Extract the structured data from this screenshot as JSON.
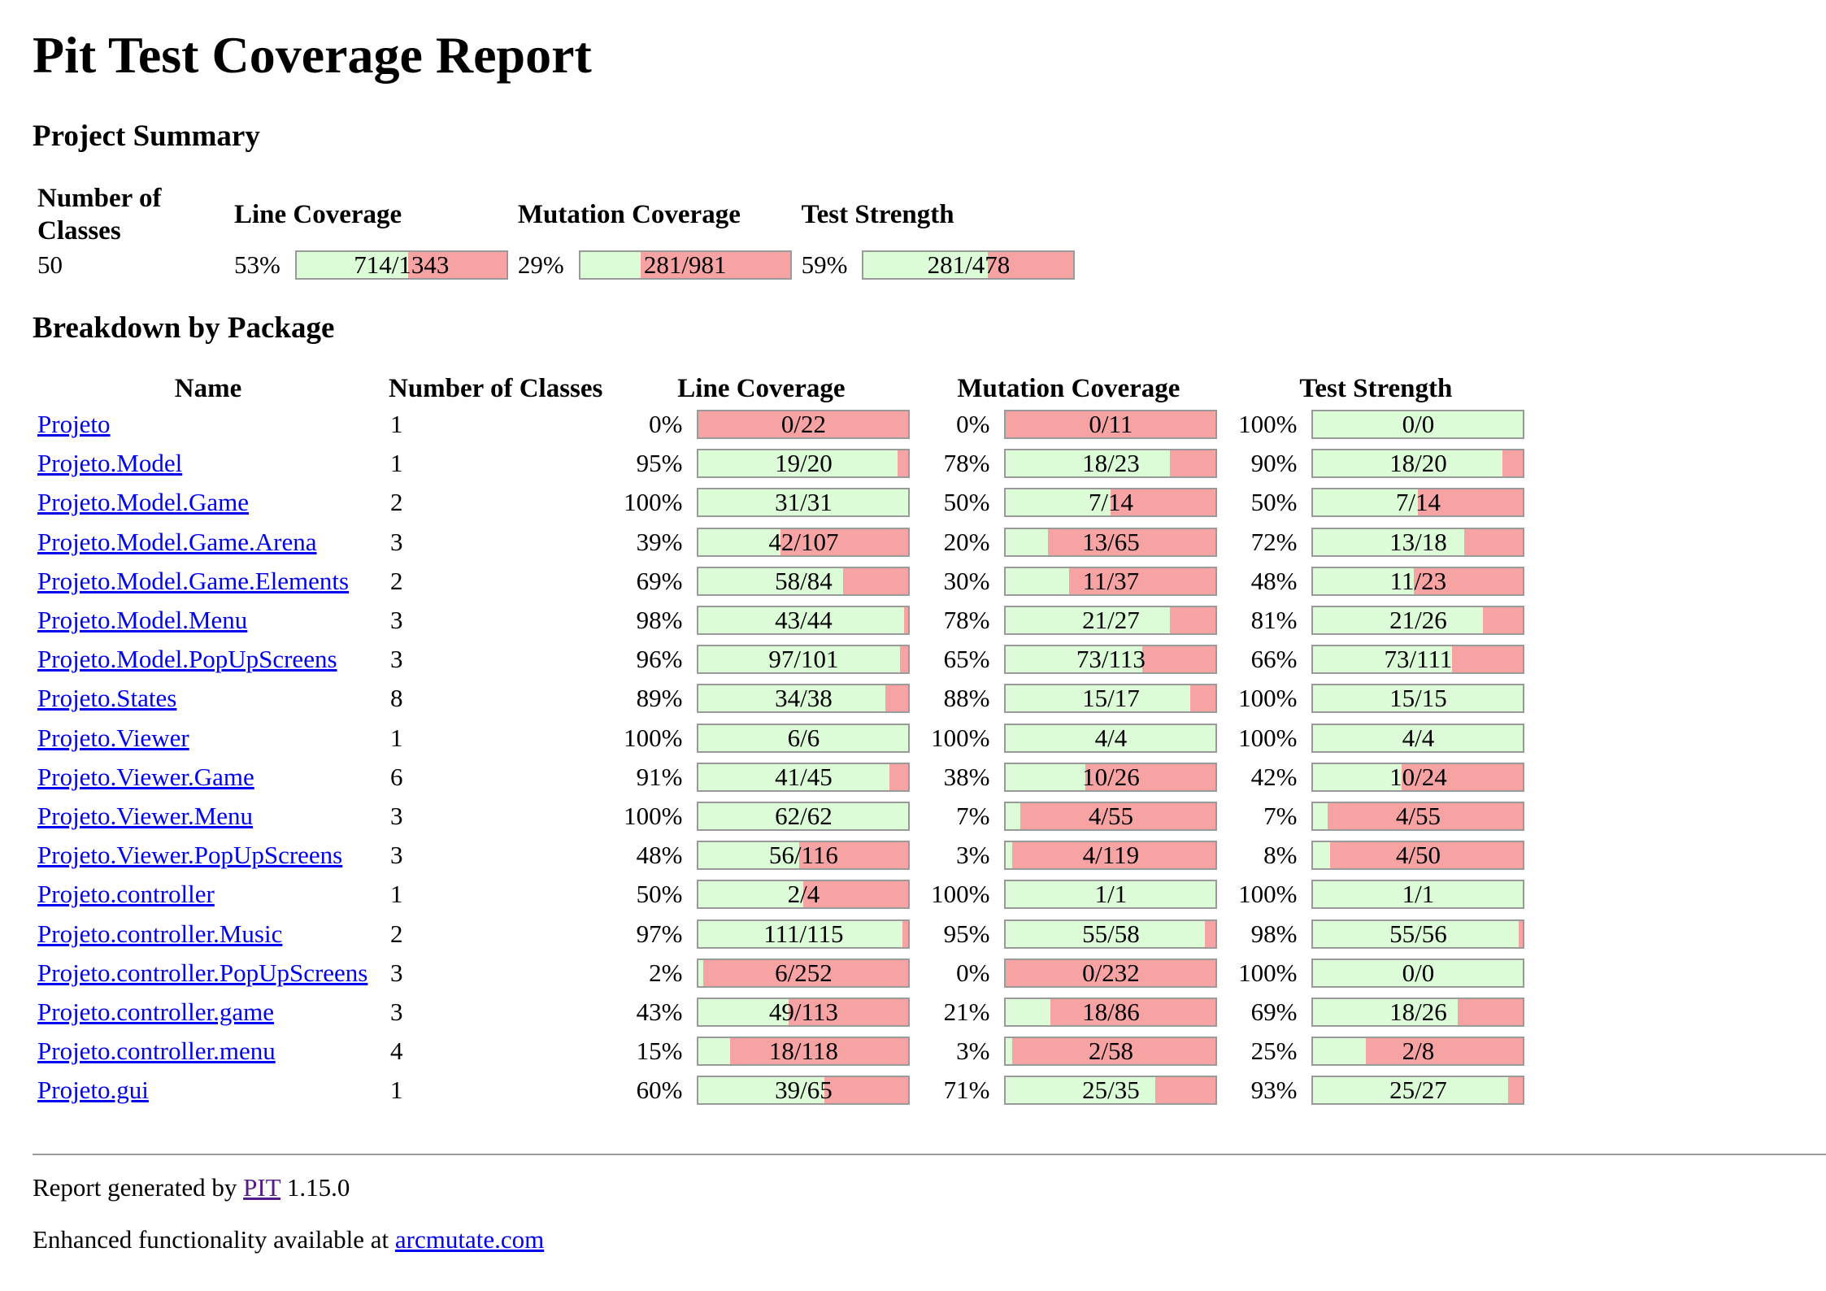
{
  "title": "Pit Test Coverage Report",
  "summary": {
    "heading": "Project Summary",
    "headers": {
      "classes": "Number of Classes",
      "line": "Line Coverage",
      "mutation": "Mutation Coverage",
      "strength": "Test Strength"
    },
    "classes": "50",
    "line": {
      "pct": "53%",
      "text": "714/1343",
      "ratio": 0.53
    },
    "mutation": {
      "pct": "29%",
      "text": "281/981",
      "ratio": 0.29
    },
    "strength": {
      "pct": "59%",
      "text": "281/478",
      "ratio": 0.59
    }
  },
  "breakdown": {
    "heading": "Breakdown by Package",
    "headers": {
      "name": "Name",
      "classes": "Number of Classes",
      "line": "Line Coverage",
      "mutation": "Mutation Coverage",
      "strength": "Test Strength"
    },
    "rows": [
      {
        "name": "Projeto",
        "classes": "1",
        "line": [
          "0%",
          "0/22",
          0
        ],
        "mutation": [
          "0%",
          "0/11",
          0
        ],
        "strength": [
          "100%",
          "0/0",
          1
        ]
      },
      {
        "name": "Projeto.Model",
        "classes": "1",
        "line": [
          "95%",
          "19/20",
          0.95
        ],
        "mutation": [
          "78%",
          "18/23",
          0.78
        ],
        "strength": [
          "90%",
          "18/20",
          0.9
        ]
      },
      {
        "name": "Projeto.Model.Game",
        "classes": "2",
        "line": [
          "100%",
          "31/31",
          1
        ],
        "mutation": [
          "50%",
          "7/14",
          0.5
        ],
        "strength": [
          "50%",
          "7/14",
          0.5
        ]
      },
      {
        "name": "Projeto.Model.Game.Arena",
        "classes": "3",
        "line": [
          "39%",
          "42/107",
          0.39
        ],
        "mutation": [
          "20%",
          "13/65",
          0.2
        ],
        "strength": [
          "72%",
          "13/18",
          0.72
        ]
      },
      {
        "name": "Projeto.Model.Game.Elements",
        "classes": "2",
        "line": [
          "69%",
          "58/84",
          0.69
        ],
        "mutation": [
          "30%",
          "11/37",
          0.3
        ],
        "strength": [
          "48%",
          "11/23",
          0.48
        ]
      },
      {
        "name": "Projeto.Model.Menu",
        "classes": "3",
        "line": [
          "98%",
          "43/44",
          0.98
        ],
        "mutation": [
          "78%",
          "21/27",
          0.78
        ],
        "strength": [
          "81%",
          "21/26",
          0.81
        ]
      },
      {
        "name": "Projeto.Model.PopUpScreens",
        "classes": "3",
        "line": [
          "96%",
          "97/101",
          0.96
        ],
        "mutation": [
          "65%",
          "73/113",
          0.65
        ],
        "strength": [
          "66%",
          "73/111",
          0.66
        ]
      },
      {
        "name": "Projeto.States",
        "classes": "8",
        "line": [
          "89%",
          "34/38",
          0.89
        ],
        "mutation": [
          "88%",
          "15/17",
          0.88
        ],
        "strength": [
          "100%",
          "15/15",
          1
        ]
      },
      {
        "name": "Projeto.Viewer",
        "classes": "1",
        "line": [
          "100%",
          "6/6",
          1
        ],
        "mutation": [
          "100%",
          "4/4",
          1
        ],
        "strength": [
          "100%",
          "4/4",
          1
        ]
      },
      {
        "name": "Projeto.Viewer.Game",
        "classes": "6",
        "line": [
          "91%",
          "41/45",
          0.91
        ],
        "mutation": [
          "38%",
          "10/26",
          0.38
        ],
        "strength": [
          "42%",
          "10/24",
          0.42
        ]
      },
      {
        "name": "Projeto.Viewer.Menu",
        "classes": "3",
        "line": [
          "100%",
          "62/62",
          1
        ],
        "mutation": [
          "7%",
          "4/55",
          0.07
        ],
        "strength": [
          "7%",
          "4/55",
          0.07
        ]
      },
      {
        "name": "Projeto.Viewer.PopUpScreens",
        "classes": "3",
        "line": [
          "48%",
          "56/116",
          0.48
        ],
        "mutation": [
          "3%",
          "4/119",
          0.03
        ],
        "strength": [
          "8%",
          "4/50",
          0.08
        ]
      },
      {
        "name": "Projeto.controller",
        "classes": "1",
        "line": [
          "50%",
          "2/4",
          0.5
        ],
        "mutation": [
          "100%",
          "1/1",
          1
        ],
        "strength": [
          "100%",
          "1/1",
          1
        ]
      },
      {
        "name": "Projeto.controller.Music",
        "classes": "2",
        "line": [
          "97%",
          "111/115",
          0.97
        ],
        "mutation": [
          "95%",
          "55/58",
          0.95
        ],
        "strength": [
          "98%",
          "55/56",
          0.98
        ]
      },
      {
        "name": "Projeto.controller.PopUpScreens",
        "classes": "3",
        "line": [
          "2%",
          "6/252",
          0.02
        ],
        "mutation": [
          "0%",
          "0/232",
          0
        ],
        "strength": [
          "100%",
          "0/0",
          1
        ]
      },
      {
        "name": "Projeto.controller.game",
        "classes": "3",
        "line": [
          "43%",
          "49/113",
          0.43
        ],
        "mutation": [
          "21%",
          "18/86",
          0.21
        ],
        "strength": [
          "69%",
          "18/26",
          0.69
        ]
      },
      {
        "name": "Projeto.controller.menu",
        "classes": "4",
        "line": [
          "15%",
          "18/118",
          0.15
        ],
        "mutation": [
          "3%",
          "2/58",
          0.03
        ],
        "strength": [
          "25%",
          "2/8",
          0.25
        ]
      },
      {
        "name": "Projeto.gui",
        "classes": "1",
        "line": [
          "60%",
          "39/65",
          0.6
        ],
        "mutation": [
          "71%",
          "25/35",
          0.71
        ],
        "strength": [
          "93%",
          "25/27",
          0.93
        ]
      }
    ]
  },
  "footer": {
    "generated_prefix": "Report generated by",
    "pit_link": "PIT",
    "version": "1.15.0",
    "enhanced_prefix": "Enhanced functionality available at",
    "arc_link": "arcmutate.com"
  },
  "colors": {
    "covered": "#dcfcd7",
    "uncovered": "#f8a3a3",
    "link": "#0000ee",
    "visited_link": "#551a8b"
  }
}
